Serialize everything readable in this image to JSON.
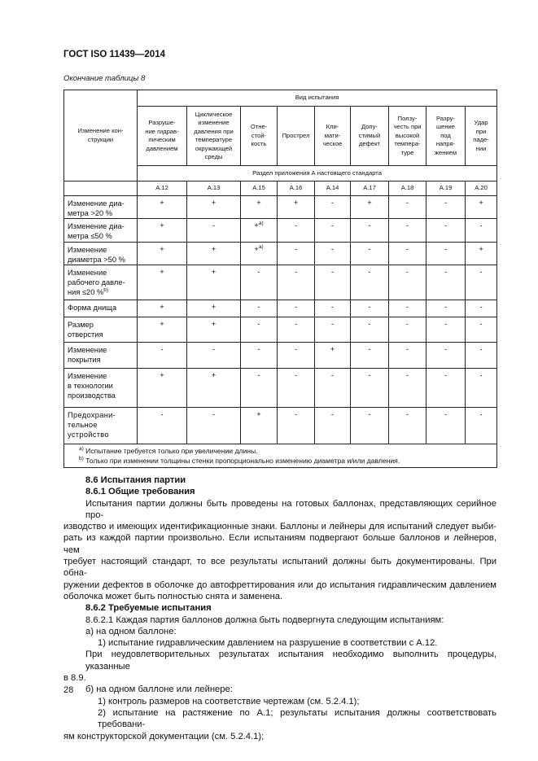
{
  "header": {
    "code": "ГОСТ ISO 11439—2014"
  },
  "table": {
    "caption": "Окончание таблицы 8",
    "stub_header": "Изменение кон-\nструкции",
    "group_header": "Вид испытания",
    "columns": [
      "Разруше-\nние гидрав-\nлическим\nдавлением",
      "Циклическое\nизменение\nдавления при\nтемпературе\nокружающей\nсреды",
      "Отне-\nстой-\nкость",
      "Прострел",
      "Кли-\nмати-\nческое",
      "Допу-\nстимый\nдефект",
      "Ползу-\nчесть при\nвысокой\nтемпера-\nтуре",
      "Разру-\nшение\nпод\nнапря-\nжением",
      "Удар\nпри\nпаде-\nнии"
    ],
    "section_header": "Раздел приложения А настоящего стандарта",
    "sections": [
      "А.12",
      "А.13",
      "А.15",
      "А.16",
      "А.14",
      "А.17",
      "А.18",
      "А.19",
      "А.20"
    ],
    "rows": [
      {
        "label": "Изменение диа-\nметра >20 %",
        "cells": [
          "+",
          "+",
          "+",
          "+",
          "-",
          "+",
          "-",
          "-",
          "+"
        ]
      },
      {
        "label": "Изменение диа-\nметра ≤50 %",
        "cells": [
          "+",
          "-",
          {
            "text": "+",
            "sup": "a)"
          },
          "-",
          "-",
          "-",
          "-",
          "-",
          "-"
        ]
      },
      {
        "label": "Изменение\nдиаметра >50 %",
        "cells": [
          "+",
          "+",
          {
            "text": "+",
            "sup": "a)"
          },
          "-",
          "-",
          "-",
          "-",
          "-",
          "+"
        ]
      },
      {
        "label": "Изменение\nрабочего давле-\nния ≤20 %",
        "label_sup": "b)",
        "cells": [
          "+",
          "+",
          "-",
          "-",
          "-",
          "-",
          "-",
          "-",
          "-"
        ]
      },
      {
        "label": "Форма днища",
        "cells": [
          "+",
          "+",
          "-",
          "-",
          "-",
          "-",
          "-",
          "-",
          "-"
        ]
      },
      {
        "label": "Размер\nотверстия",
        "cells": [
          "+",
          "+",
          "-",
          "-",
          "-",
          "-",
          "-",
          "-",
          "-"
        ]
      },
      {
        "label": "Изменение\nпокрытия",
        "cells": [
          "-",
          "-",
          "-",
          "-",
          "+",
          "-",
          "-",
          "-",
          "-"
        ]
      },
      {
        "label": "Изменение\nв технологии\nпроизводства",
        "cells": [
          "+",
          "+",
          "-",
          "-",
          "-",
          "-",
          "-",
          "-",
          "-"
        ]
      },
      {
        "label": "Предохрани-\nтельное\nустройство",
        "cells": [
          "-",
          "-",
          "+",
          "-",
          "-",
          "-",
          "-",
          "-",
          "-"
        ]
      }
    ],
    "footnotes": [
      {
        "mark": "a)",
        "text": "Испытание требуется только при увеличении длины."
      },
      {
        "mark": "b)",
        "text": "Только при изменении толщины стенки пропорционально изменению диаметра и/или давления."
      }
    ]
  },
  "body": [
    {
      "kind": "heading",
      "lines": [
        "8.6 Испытания партии"
      ]
    },
    {
      "kind": "heading",
      "lines": [
        "8.6.1 Общие требования"
      ]
    },
    {
      "kind": "para",
      "lines": [
        "Испытания партии должны быть проведены на готовых баллонах, представляющих серийное про-",
        "изводство и имеющих идентификационные знаки. Баллоны и лейнеры для испытаний следует выби-",
        "рать из каждой партии произвольно. Если испытаниям подвергают больше баллонов и лейнеров, чем",
        "требует настоящий стандарт, то все результаты испытаний должны быть документированы. При обна-",
        "ружении дефектов в оболочке до автофреттирования или до испытания гидравлическим давлением",
        "оболочка может быть полностью снята и заменена."
      ]
    },
    {
      "kind": "heading",
      "lines": [
        "8.6.2 Требуемые испытания"
      ]
    },
    {
      "kind": "para",
      "lines": [
        "8.6.2.1 Каждая партия баллонов должна быть подвергнута следующим испытаниям:"
      ]
    },
    {
      "kind": "para",
      "lines": [
        "а) на одном баллоне:"
      ]
    },
    {
      "kind": "sub",
      "lines": [
        "1) испытание гидравлическим давлением на разрушение в соответствии с А.12."
      ]
    },
    {
      "kind": "para",
      "lines": [
        "При неудовлетворительных результатах испытания необходимо выполнить процедуры, указанные",
        "в 8.9."
      ]
    },
    {
      "kind": "para",
      "lines": [
        "б) на одном баллоне или лейнере:"
      ]
    },
    {
      "kind": "sub",
      "lines": [
        "1) контроль размеров на соответствие чертежам (см. 5.2.4.1);"
      ]
    },
    {
      "kind": "sub",
      "lines": [
        "2) испытание на растяжение по А.1; результаты испытания должны соответствовать требовани-",
        "ям конструкторской документации (см. 5.2.4.1);"
      ]
    }
  ],
  "footer": {
    "page": "28"
  }
}
